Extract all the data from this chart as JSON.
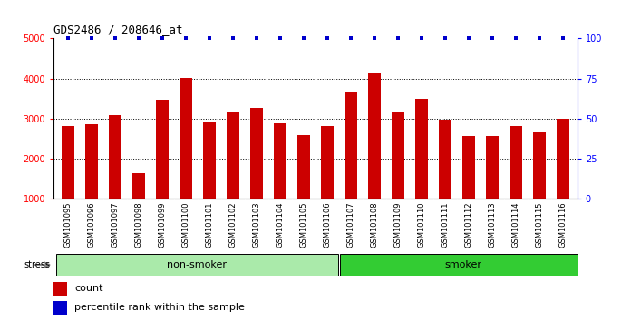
{
  "title": "GDS2486 / 208646_at",
  "samples": [
    "GSM101095",
    "GSM101096",
    "GSM101097",
    "GSM101098",
    "GSM101099",
    "GSM101100",
    "GSM101101",
    "GSM101102",
    "GSM101103",
    "GSM101104",
    "GSM101105",
    "GSM101106",
    "GSM101107",
    "GSM101108",
    "GSM101109",
    "GSM101110",
    "GSM101111",
    "GSM101112",
    "GSM101113",
    "GSM101114",
    "GSM101115",
    "GSM101116"
  ],
  "counts": [
    2820,
    2870,
    3100,
    1640,
    3480,
    4010,
    2920,
    3190,
    3270,
    2880,
    2590,
    2810,
    3660,
    4160,
    3150,
    3490,
    2980,
    2560,
    2560,
    2820,
    2660,
    2990
  ],
  "percentile_ranks": [
    100,
    100,
    100,
    100,
    100,
    100,
    100,
    100,
    100,
    100,
    100,
    100,
    100,
    100,
    100,
    100,
    100,
    100,
    100,
    100,
    100,
    100
  ],
  "non_smoker_count": 12,
  "smoker_count": 10,
  "bar_color": "#cc0000",
  "percentile_color": "#0000cc",
  "non_smoker_color": "#aaeaaa",
  "smoker_color": "#33cc33",
  "label_bg_color": "#cccccc",
  "plot_bg_color": "#ffffff",
  "ylim_left": [
    1000,
    5000
  ],
  "ylim_right": [
    0,
    100
  ],
  "yticks_left": [
    1000,
    2000,
    3000,
    4000,
    5000
  ],
  "yticks_right": [
    0,
    25,
    50,
    75,
    100
  ],
  "grid_lines": [
    2000,
    3000,
    4000
  ],
  "legend_count": "count",
  "legend_pct": "percentile rank within the sample",
  "stress_label": "stress",
  "non_smoker_label": "non-smoker",
  "smoker_label": "smoker"
}
